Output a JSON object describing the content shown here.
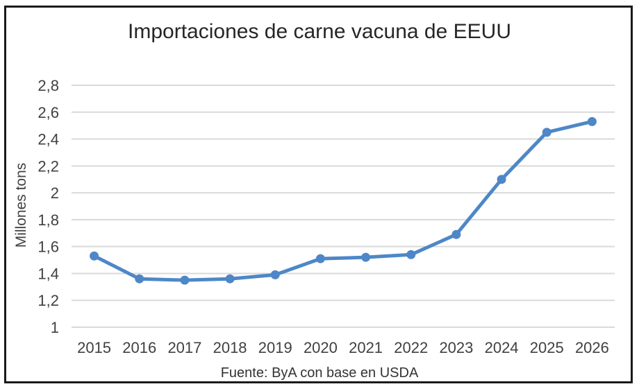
{
  "chart_data": {
    "type": "line",
    "title": "Importaciones de carne vacuna de EEUU",
    "ylabel": "Millones tons",
    "xlabel": "",
    "source": "Fuente: ByA con base en USDA",
    "categories": [
      "2015",
      "2016",
      "2017",
      "2018",
      "2019",
      "2020",
      "2021",
      "2022",
      "2023",
      "2024",
      "2025",
      "2026"
    ],
    "values": [
      1.53,
      1.36,
      1.35,
      1.36,
      1.39,
      1.51,
      1.52,
      1.54,
      1.69,
      2.1,
      2.45,
      2.53
    ],
    "ylim": [
      1,
      2.8
    ],
    "ytick_step": 0.2,
    "ytick_labels": [
      "1",
      "1,2",
      "1,4",
      "1,6",
      "1,8",
      "2",
      "2,2",
      "2,4",
      "2,6",
      "2,8"
    ],
    "decimal_separator": ",",
    "grid": "horizontal",
    "legend": "none",
    "marker": "circle",
    "colors": {
      "line": "#4e87c7",
      "gridline": "#d9d9d9",
      "tick_text": "#404040",
      "title_text": "#262626",
      "frame_border": "#1a1a1a",
      "background": "#ffffff"
    }
  }
}
